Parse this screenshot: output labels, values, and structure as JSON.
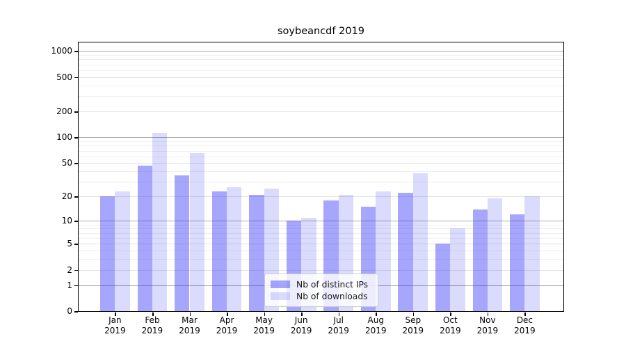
{
  "title": "soybeancdf 2019",
  "colors": {
    "series_base": "#2b2bf8",
    "bar_distinct_ips_solid": "#a6a6f8",
    "bar_downloads_solid": "#dcdcfb",
    "bar_distinct_ips": "rgba(43,43,248,0.42)",
    "bar_downloads": "rgba(43,43,248,0.17)",
    "grid_major": "#ababab",
    "grid_minor": "#efefef",
    "axis": "#000000",
    "legend_border": "#cccccc"
  },
  "chart_data": {
    "type": "bar",
    "title": "soybeancdf 2019",
    "categories": [
      "Jan",
      "Feb",
      "Mar",
      "Apr",
      "May",
      "Jun",
      "Jul",
      "Aug",
      "Sep",
      "Oct",
      "Nov",
      "Dec"
    ],
    "category_year": "2019",
    "series": [
      {
        "name": "Nb of distinct IPs",
        "values": [
          20,
          47,
          36,
          23,
          21,
          10,
          18,
          15,
          22,
          5,
          14,
          12
        ]
      },
      {
        "name": "Nb of downloads",
        "values": [
          23,
          112,
          65,
          26,
          25,
          11,
          21,
          23,
          38,
          8,
          19,
          20
        ]
      }
    ],
    "xlabel": "",
    "ylabel": "",
    "yticks": [
      0,
      1,
      2,
      5,
      10,
      20,
      50,
      100,
      200,
      500,
      1000
    ],
    "y_scale": "log10(1+value)",
    "ylim": [
      0,
      1258
    ],
    "grid": "on",
    "minor_gridlines": [
      3,
      4,
      6,
      7,
      8,
      9,
      30,
      40,
      60,
      70,
      80,
      90,
      300,
      400,
      600,
      700,
      800,
      900
    ],
    "legend_position": "lower center"
  }
}
